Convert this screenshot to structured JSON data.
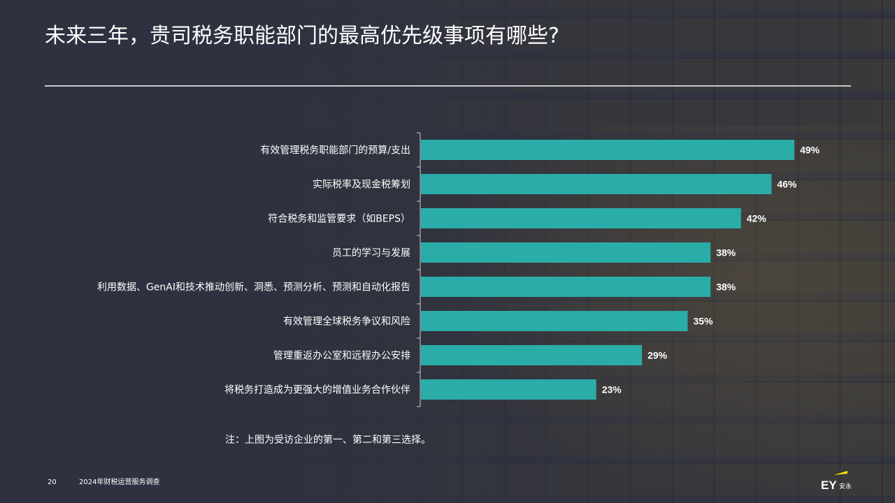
{
  "title": "未来三年，贵司税务职能部门的最高优先级事项有哪些?",
  "note": "注：上图为受访企业的第一、第二和第三选择。",
  "footer": {
    "page_number": "20",
    "survey_name": "2024年财税运营服务调查"
  },
  "logo": {
    "mark": "EY",
    "text": "安永"
  },
  "colors": {
    "bar": "#2aaca8",
    "background": "#2e313f",
    "text": "#ffffff",
    "logo_accent": "#ffe600"
  },
  "chart_data": {
    "type": "bar",
    "orientation": "horizontal",
    "categories": [
      "有效管理税务职能部门的预算/支出",
      "实际税率及现金税筹划",
      "符合税务和监管要求（如BEPS）",
      "员工的学习与发展",
      "利用数据、GenAI和技术推动创新、洞悉、预测分析、预测和自动化报告",
      "有效管理全球税务争议和风险",
      "管理重返办公室和远程办公安排",
      "将税务打造成为更强大的增值业务合作伙伴"
    ],
    "values": [
      49,
      46,
      42,
      38,
      38,
      35,
      29,
      23
    ],
    "value_labels": [
      "49%",
      "46%",
      "42%",
      "38%",
      "38%",
      "35%",
      "29%",
      "23%"
    ],
    "unit": "%",
    "xlim": [
      0,
      100
    ],
    "grid": false,
    "legend": "none"
  }
}
